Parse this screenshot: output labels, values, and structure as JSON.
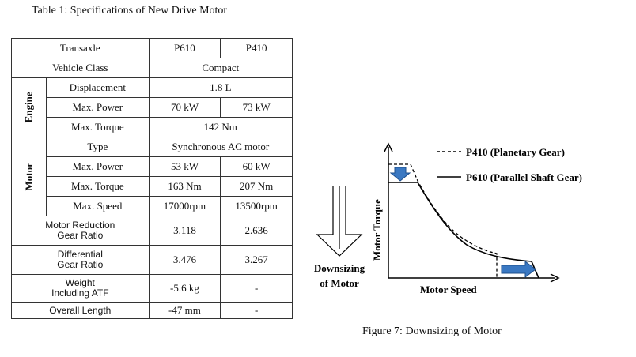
{
  "table": {
    "caption": "Table 1: Specifications of New Drive Motor",
    "header": {
      "label": "Transaxle",
      "col1": "P610",
      "col2": "P410"
    },
    "vehicle_class": {
      "label": "Vehicle Class",
      "value": "Compact"
    },
    "engine": {
      "group_label": "Engine",
      "displacement": {
        "label": "Displacement",
        "value": "1.8 L"
      },
      "max_power": {
        "label": "Max. Power",
        "p610": "70 kW",
        "p410": "73 kW"
      },
      "max_torque": {
        "label": "Max. Torque",
        "value": "142 Nm"
      }
    },
    "motor": {
      "group_label": "Motor",
      "type": {
        "label": "Type",
        "value": "Synchronous AC motor"
      },
      "max_power": {
        "label": "Max. Power",
        "p610": "53 kW",
        "p410": "60 kW"
      },
      "max_torque": {
        "label": "Max. Torque",
        "p610": "163 Nm",
        "p410": "207 Nm"
      },
      "max_speed": {
        "label": "Max. Speed",
        "p610": "17000rpm",
        "p410": "13500rpm"
      }
    },
    "motor_reduction": {
      "label_line1": "Motor Reduction",
      "label_line2": "Gear Ratio",
      "p610": "3.118",
      "p410": "2.636"
    },
    "differential": {
      "label_line1": "Differential",
      "label_line2": "Gear Ratio",
      "p610": "3.476",
      "p410": "3.267"
    },
    "weight": {
      "label_line1": "Weight",
      "label_line2": "Including ATF",
      "p610": "-5.6 kg",
      "p410": "-"
    },
    "overall_length": {
      "label": "Overall Length",
      "p610": "-47 mm",
      "p410": "-"
    }
  },
  "figure": {
    "caption": "Figure 7: Downsizing of Motor",
    "legend_p410": "P410 (Planetary Gear)",
    "legend_p610": "P610 (Parallel Shaft Gear)",
    "y_axis_label": "Motor Torque",
    "x_axis_label": "Motor Speed",
    "downsizing_line1": "Downsizing",
    "downsizing_line2": "of Motor",
    "colors": {
      "arrow_fill": "#3a78c2",
      "arrow_edge": "#1e4f8c",
      "line": "#000000"
    }
  }
}
